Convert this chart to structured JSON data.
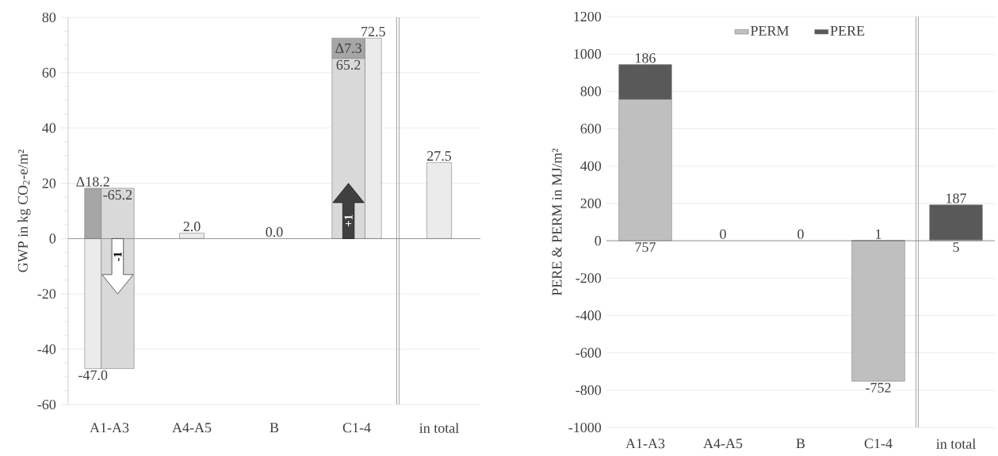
{
  "chart_data": [
    {
      "type": "bar",
      "categories": [
        "A1-A3",
        "A4-A5",
        "B",
        "C1-4",
        "in total"
      ],
      "ylabel": "GWP in kg CO$_{2}$-e/m²",
      "series": [
        {
          "color": "#ebebeb",
          "values": [
            -47.0,
            2.0,
            0.0,
            72.5,
            27.5
          ],
          "value_labels": [
            "-47.0",
            "2.0",
            "0.0",
            "72.5",
            "27.5"
          ]
        },
        {
          "color": "#d9d9d9",
          "values": [
            -65.2,
            null,
            null,
            65.2,
            null
          ],
          "base": [
            18.2,
            null,
            null,
            0,
            null
          ],
          "value_labels": [
            "-65.2",
            null,
            null,
            "65.2",
            null
          ]
        },
        {
          "color": "#a6a6a6",
          "values": [
            18.2,
            null,
            null,
            7.3,
            null
          ],
          "base": [
            0,
            null,
            null,
            65.2,
            null
          ],
          "value_labels": [
            "Δ18.2",
            null,
            null,
            "Δ7.3",
            null
          ]
        }
      ],
      "annotations": [
        "-1",
        "+1"
      ],
      "ylim": [
        -60,
        80
      ],
      "yticks": [
        -60,
        -40,
        -20,
        0,
        20,
        40,
        60,
        80
      ],
      "grid": "y"
    },
    {
      "type": "bar",
      "stacked": true,
      "categories": [
        "A1-A3",
        "A4-A5",
        "B",
        "C1-4",
        "in total"
      ],
      "ylabel": "PERE & PERM in MJ/m²",
      "series": [
        {
          "name": "PERM",
          "color": "#bfbfbf",
          "values": [
            757,
            0,
            0,
            -752,
            5
          ],
          "value_labels": [
            "757",
            null,
            null,
            "-752",
            "5"
          ]
        },
        {
          "name": "PERE",
          "color": "#595959",
          "values": [
            186,
            0,
            0,
            1,
            187
          ],
          "value_labels": [
            "186",
            "0",
            "0",
            "1",
            "187"
          ]
        }
      ],
      "ylim": [
        -1000,
        1200
      ],
      "yticks": [
        -1000,
        -800,
        -600,
        -400,
        -200,
        0,
        200,
        400,
        600,
        800,
        1000,
        1200
      ],
      "grid": "y",
      "legend": "top"
    }
  ]
}
